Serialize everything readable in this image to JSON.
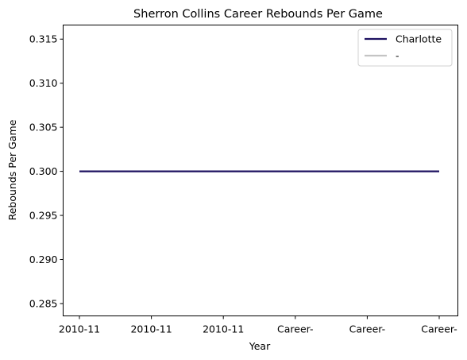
{
  "chart_data": {
    "type": "line",
    "title": "Sherron Collins Career Rebounds Per Game",
    "xlabel": "Year",
    "ylabel": "Rebounds Per Game",
    "categories": [
      "2010-11",
      "2010-11",
      "2010-11",
      "Career-",
      "Career-",
      "Career-"
    ],
    "series": [
      {
        "name": "Charlotte",
        "color": "#1d1160",
        "values": [
          0.3,
          0.3,
          0.3,
          0.3,
          0.3,
          0.3
        ]
      }
    ],
    "legend_entries": [
      {
        "label": "Charlotte",
        "color": "#1d1160"
      },
      {
        "label": "-",
        "color": "#c4c4c4"
      }
    ],
    "ylim": [
      0.2836,
      0.3166
    ],
    "yticks": [
      0.285,
      0.29,
      0.295,
      0.3,
      0.305,
      0.31,
      0.315
    ],
    "ytick_labels": [
      "0.285",
      "0.290",
      "0.295",
      "0.300",
      "0.305",
      "0.310",
      "0.315"
    ],
    "grid": false,
    "legend_position": "top-right"
  }
}
